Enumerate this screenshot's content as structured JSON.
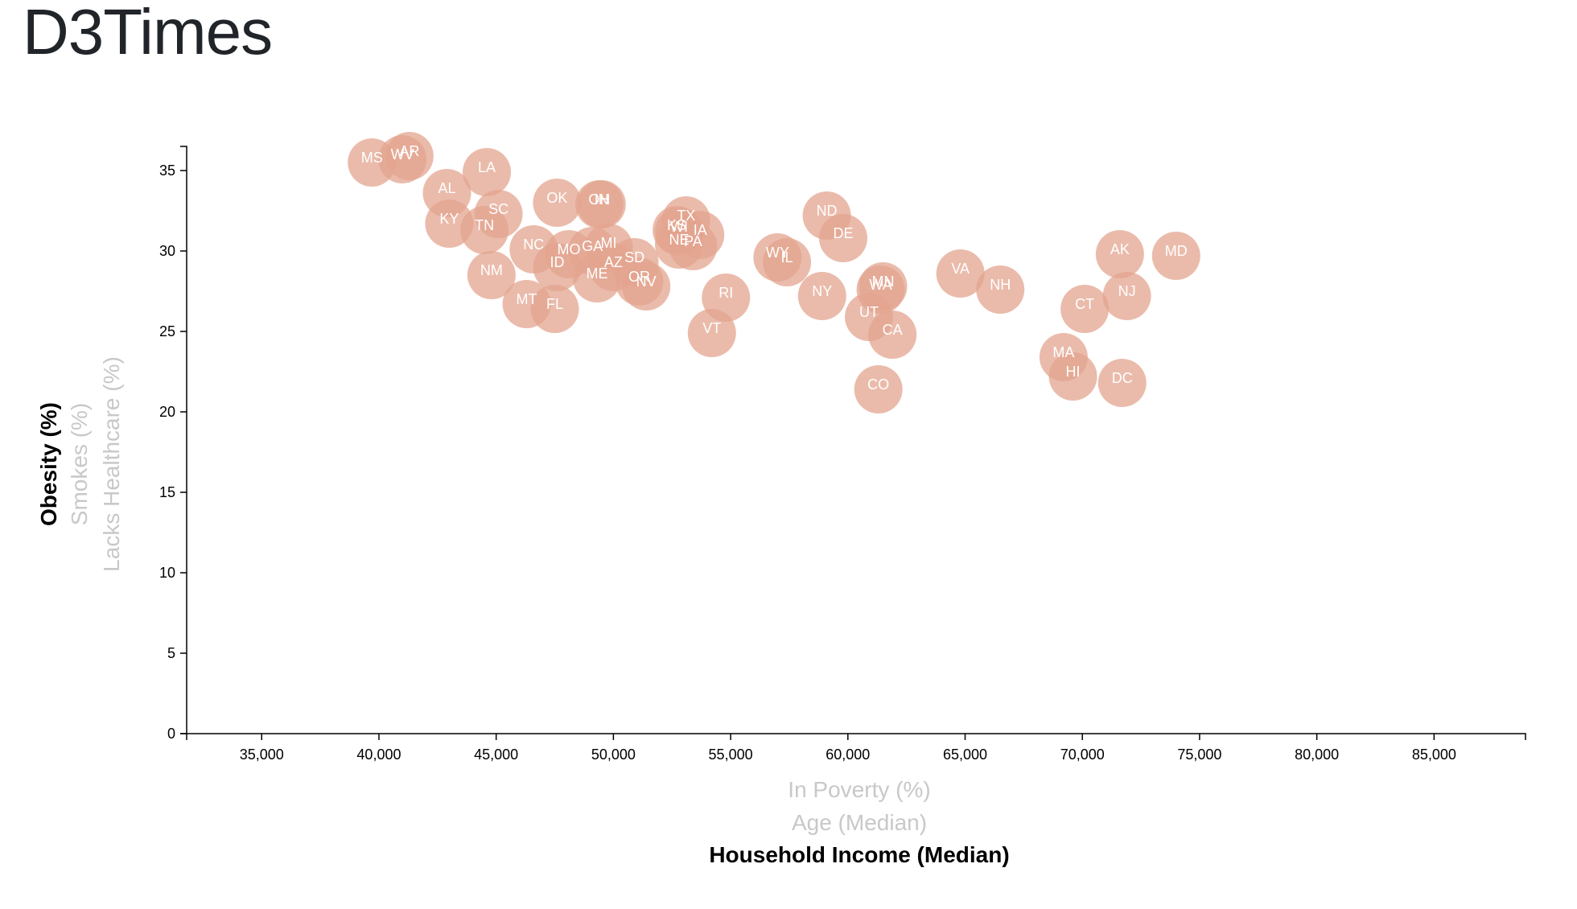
{
  "page": {
    "title": "D3Times"
  },
  "colors": {
    "circle": "#e3a48f",
    "state_text": "#ffffff",
    "active_label": "#000000",
    "inactive_label": "#c8c8c8",
    "axis": "#000000"
  },
  "chart_data": {
    "type": "scatter",
    "xlim": [
      31800,
      88900
    ],
    "ylim": [
      0,
      36.5
    ],
    "x_ticks": [
      35000,
      40000,
      45000,
      50000,
      55000,
      60000,
      65000,
      70000,
      75000,
      80000,
      85000
    ],
    "y_ticks": [
      0,
      5,
      10,
      15,
      20,
      25,
      30,
      35
    ],
    "x_labels": [
      {
        "text": "In Poverty (%)",
        "active": false
      },
      {
        "text": "Age (Median)",
        "active": false
      },
      {
        "text": "Household Income (Median)",
        "active": true
      }
    ],
    "y_labels": [
      {
        "text": "Obesity (%)",
        "active": true
      },
      {
        "text": "Smokes (%)",
        "active": false
      },
      {
        "text": "Lacks Healthcare (%)",
        "active": false
      }
    ],
    "points": [
      {
        "abbr": "MS",
        "x": 39700,
        "y": 35.5
      },
      {
        "abbr": "WV",
        "x": 41000,
        "y": 35.7
      },
      {
        "abbr": "AR",
        "x": 41300,
        "y": 35.9
      },
      {
        "abbr": "LA",
        "x": 44600,
        "y": 34.9
      },
      {
        "abbr": "AL",
        "x": 42900,
        "y": 33.6
      },
      {
        "abbr": "SC",
        "x": 45100,
        "y": 32.3
      },
      {
        "abbr": "KY",
        "x": 43000,
        "y": 31.7
      },
      {
        "abbr": "TN",
        "x": 44500,
        "y": 31.3
      },
      {
        "abbr": "OK",
        "x": 47600,
        "y": 33.0
      },
      {
        "abbr": "OH",
        "x": 49400,
        "y": 32.9
      },
      {
        "abbr": "IN",
        "x": 49500,
        "y": 32.9
      },
      {
        "abbr": "NC",
        "x": 46600,
        "y": 30.1
      },
      {
        "abbr": "MO",
        "x": 48100,
        "y": 29.8
      },
      {
        "abbr": "GA",
        "x": 49100,
        "y": 30.0
      },
      {
        "abbr": "MI",
        "x": 49800,
        "y": 30.2
      },
      {
        "abbr": "SD",
        "x": 50900,
        "y": 29.3
      },
      {
        "abbr": "ID",
        "x": 47600,
        "y": 29.0
      },
      {
        "abbr": "AZ",
        "x": 50000,
        "y": 29.0
      },
      {
        "abbr": "ME",
        "x": 49300,
        "y": 28.3
      },
      {
        "abbr": "OR",
        "x": 51100,
        "y": 28.1
      },
      {
        "abbr": "NV",
        "x": 51400,
        "y": 27.8
      },
      {
        "abbr": "NM",
        "x": 44800,
        "y": 28.5
      },
      {
        "abbr": "MT",
        "x": 46300,
        "y": 26.7
      },
      {
        "abbr": "FL",
        "x": 47500,
        "y": 26.4
      },
      {
        "abbr": "TX",
        "x": 53100,
        "y": 31.9
      },
      {
        "abbr": "KS",
        "x": 52700,
        "y": 31.3
      },
      {
        "abbr": "WI",
        "x": 52800,
        "y": 31.2
      },
      {
        "abbr": "IA",
        "x": 53700,
        "y": 31.0
      },
      {
        "abbr": "NE",
        "x": 52800,
        "y": 30.4
      },
      {
        "abbr": "PA",
        "x": 53400,
        "y": 30.3
      },
      {
        "abbr": "RI",
        "x": 54800,
        "y": 27.1
      },
      {
        "abbr": "VT",
        "x": 54200,
        "y": 24.9
      },
      {
        "abbr": "WY",
        "x": 57000,
        "y": 29.6
      },
      {
        "abbr": "IL",
        "x": 57400,
        "y": 29.3
      },
      {
        "abbr": "ND",
        "x": 59100,
        "y": 32.2
      },
      {
        "abbr": "DE",
        "x": 59800,
        "y": 30.8
      },
      {
        "abbr": "NY",
        "x": 58900,
        "y": 27.2
      },
      {
        "abbr": "MN",
        "x": 61500,
        "y": 27.8
      },
      {
        "abbr": "WA",
        "x": 61400,
        "y": 27.6
      },
      {
        "abbr": "UT",
        "x": 60900,
        "y": 25.9
      },
      {
        "abbr": "CA",
        "x": 61900,
        "y": 24.8
      },
      {
        "abbr": "CO",
        "x": 61300,
        "y": 21.4
      },
      {
        "abbr": "VA",
        "x": 64800,
        "y": 28.6
      },
      {
        "abbr": "NH",
        "x": 66500,
        "y": 27.6
      },
      {
        "abbr": "CT",
        "x": 70100,
        "y": 26.4
      },
      {
        "abbr": "MA",
        "x": 69200,
        "y": 23.4
      },
      {
        "abbr": "HI",
        "x": 69600,
        "y": 22.2
      },
      {
        "abbr": "AK",
        "x": 71600,
        "y": 29.8
      },
      {
        "abbr": "NJ",
        "x": 71900,
        "y": 27.2
      },
      {
        "abbr": "DC",
        "x": 71700,
        "y": 21.8
      },
      {
        "abbr": "MD",
        "x": 74000,
        "y": 29.7
      }
    ]
  }
}
